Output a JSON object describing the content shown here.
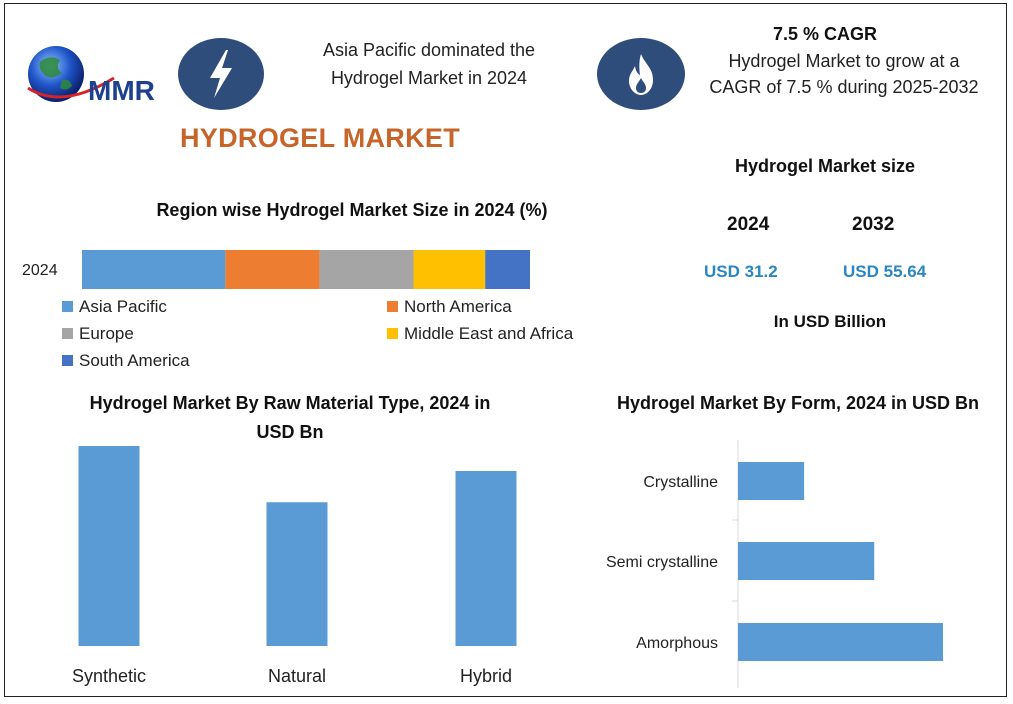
{
  "header": {
    "logo_text": "MMR",
    "title": "HYDROGEL MARKET",
    "asia_fact": "Asia Pacific dominated the Hydrogel Market in 2024",
    "cagr_headline": "7.5 % CAGR",
    "cagr_text": "Hydrogel Market to grow at a CAGR of 7.5 % during 2025-2032"
  },
  "icons": {
    "left": "lightning-bolt-icon",
    "right": "flame-icon",
    "logo": "globe-logo-icon"
  },
  "market_size": {
    "title": "Hydrogel Market size",
    "year_1": "2024",
    "year_2": "2032",
    "value_1": "USD 31.2",
    "value_2": "USD 55.64",
    "unit": "In USD Billion"
  },
  "colors": {
    "accent_orange": "#c6642a",
    "navy": "#2e4d7b",
    "value_blue": "#2a86c2",
    "bar_blue": "#5b9bd5"
  },
  "chart_data": [
    {
      "type": "bar",
      "orientation": "horizontal-stacked",
      "title": "Region wise Hydrogel Market Size in 2024 (%)",
      "categories": [
        "2024"
      ],
      "series": [
        {
          "name": "Asia Pacific",
          "values": [
            32
          ],
          "color": "#5b9bd5"
        },
        {
          "name": "North America",
          "values": [
            21
          ],
          "color": "#ed7d31"
        },
        {
          "name": "Europe",
          "values": [
            21
          ],
          "color": "#a5a5a5"
        },
        {
          "name": "Middle East and Africa",
          "values": [
            16
          ],
          "color": "#ffc000"
        },
        {
          "name": "South America",
          "values": [
            10
          ],
          "color": "#4472c4"
        }
      ],
      "legend": "bottom"
    },
    {
      "type": "bar",
      "orientation": "vertical",
      "title": "Hydrogel Market By Raw Material Type, 2024 in USD Bn",
      "categories": [
        "Synthetic",
        "Natural",
        "Hybrid"
      ],
      "values": [
        16,
        11.5,
        14
      ],
      "ylim": [
        0,
        16
      ]
    },
    {
      "type": "bar",
      "orientation": "horizontal",
      "title": "Hydrogel Market By Form, 2024 in USD Bn",
      "categories": [
        "Crystalline",
        "Semi crystalline",
        "Amorphous"
      ],
      "values": [
        5,
        10.3,
        15.5
      ],
      "xlim": [
        0,
        16
      ]
    }
  ]
}
